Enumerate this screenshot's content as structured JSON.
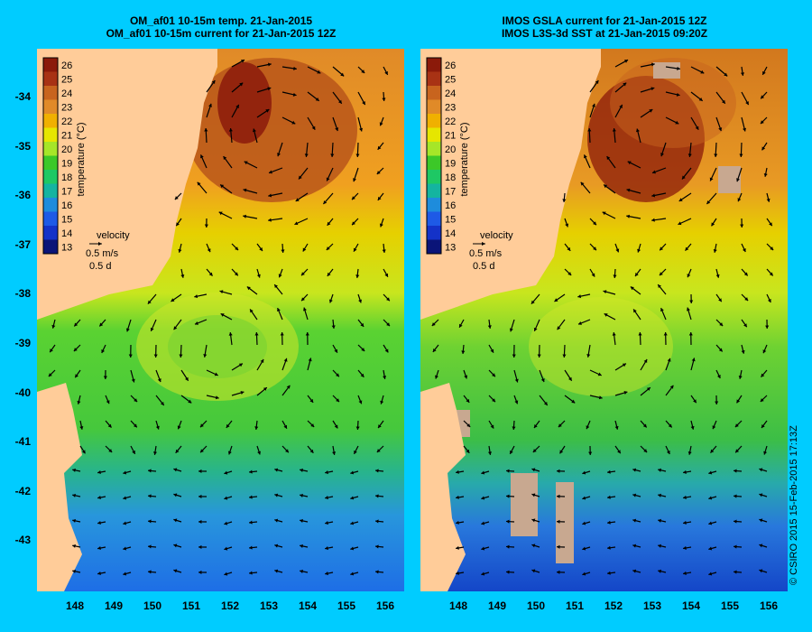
{
  "left_panel": {
    "title_line1": "OM_af01 10-15m temp. 21-Jan-2015",
    "title_line2": "OM_af01 10-15m current for 21-Jan-2015 12Z"
  },
  "right_panel": {
    "title_line1": "IMOS GSLA current for 21-Jan-2015 12Z",
    "title_line2": "IMOS L3S-3d SST at 21-Jan-2015 09:20Z"
  },
  "colorbar": {
    "ticks": [
      "26",
      "25",
      "24",
      "23",
      "22",
      "21",
      "20",
      "19",
      "18",
      "17",
      "16",
      "15",
      "14",
      "13"
    ],
    "label": "temperature (°C)",
    "colors": [
      "#8b1a0a",
      "#a83214",
      "#c8641e",
      "#e08a28",
      "#f0b000",
      "#e6e600",
      "#a6e628",
      "#3cc828",
      "#1ec864",
      "#14b4a0",
      "#1e8cdc",
      "#1e5ae6",
      "#1432c8",
      "#0a1478"
    ]
  },
  "velocity_key": {
    "label": "velocity",
    "speed": "0.5 m/s",
    "duration": "0.5 d"
  },
  "y_axis": [
    "-34",
    "-35",
    "-36",
    "-37",
    "-38",
    "-39",
    "-40",
    "-41",
    "-42",
    "-43"
  ],
  "x_axis": [
    "148",
    "149",
    "150",
    "151",
    "152",
    "153",
    "154",
    "155",
    "156"
  ],
  "credit": "© CSIRO 2015   15-Feb-2015 17:13Z",
  "colors": {
    "background": "#00ccff",
    "land": "#ffcc99",
    "cloud_mask": "#c8a890"
  }
}
